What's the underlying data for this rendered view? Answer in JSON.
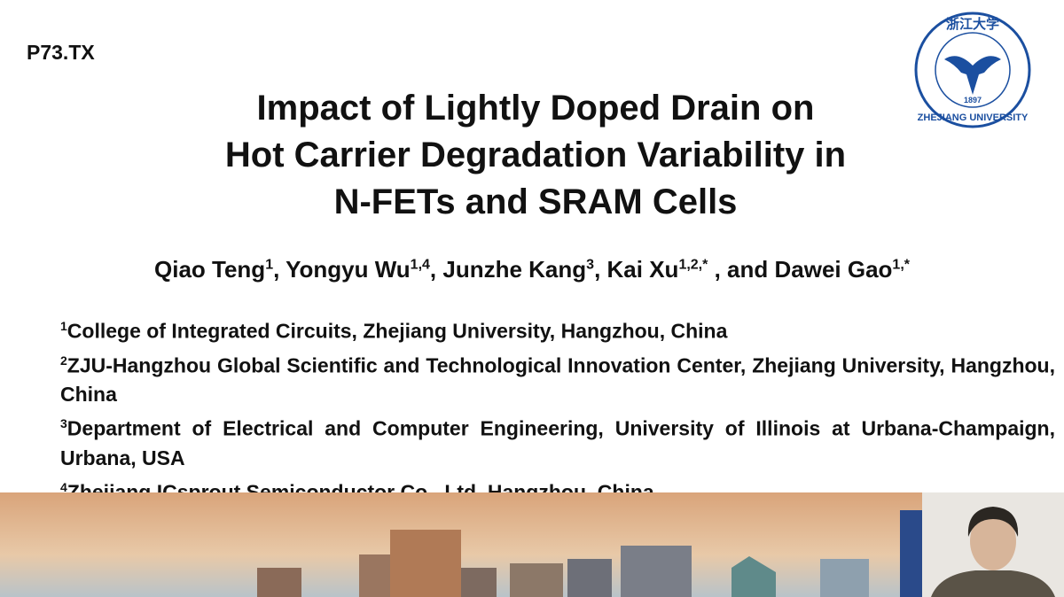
{
  "poster_id": "P73.TX",
  "title": [
    "Impact of Lightly Doped Drain on",
    "Hot Carrier Degradation Variability in",
    "N-FETs and SRAM Cells"
  ],
  "authors": [
    {
      "text": "Qiao Teng",
      "sup": "1"
    },
    {
      "text": ", Yongyu Wu",
      "sup": "1,4"
    },
    {
      "text": ", Junzhe Kang",
      "sup": "3"
    },
    {
      "text": ", Kai Xu",
      "sup": "1,2,*"
    },
    {
      "text": " , and Dawei Gao",
      "sup": "1,*"
    }
  ],
  "affiliations": [
    {
      "sup": "1",
      "text": "College of Integrated Circuits, Zhejiang University, Hangzhou, China"
    },
    {
      "sup": "2",
      "text": "ZJU-Hangzhou Global Scientific and Technological Innovation Center, Zhejiang University, Hangzhou, China"
    },
    {
      "sup": "3",
      "text": "Department of Electrical and Computer Engineering, University of Illinois at Urbana-Champaign, Urbana, USA"
    },
    {
      "sup": "4",
      "text": "Zhejiang ICsprout Semiconductor Co., Ltd, Hangzhou, China"
    }
  ],
  "logo": {
    "chinese": "浙江大学",
    "year": "1897",
    "name": "ZHEJIANG UNIVERSITY"
  }
}
